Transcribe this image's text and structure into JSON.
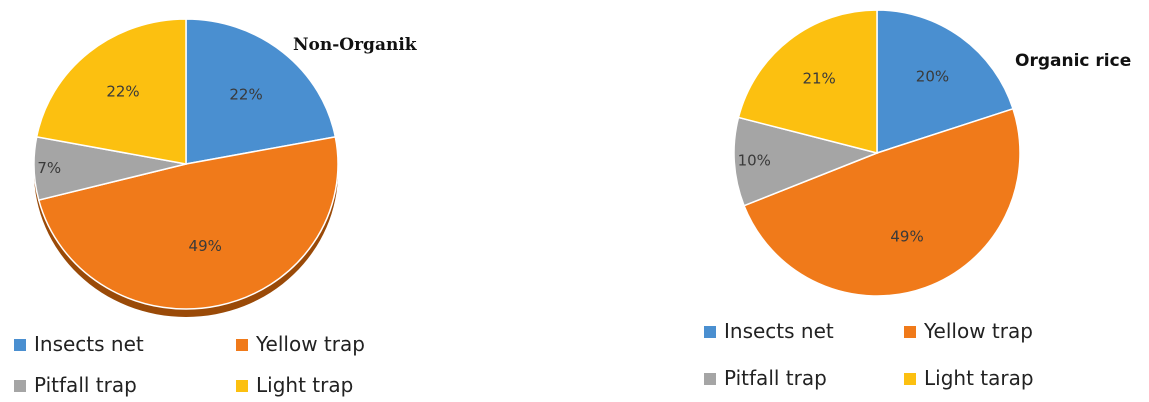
{
  "chart_data": [
    {
      "type": "pie",
      "title": "Non-Organik",
      "categories": [
        "Insects net",
        "Yellow trap",
        "Pitfall trap",
        "Light trap"
      ],
      "values": [
        22,
        49,
        7,
        22
      ],
      "labels": [
        "22%",
        "49%",
        "7%",
        "22%"
      ],
      "colors": [
        "#4a8fd0",
        "#f07a1a",
        "#a5a5a5",
        "#fcc010"
      ],
      "legend": {
        "position": "bottom",
        "items": [
          "Insects net",
          "Yellow trap",
          "Pitfall trap",
          "Light trap"
        ]
      }
    },
    {
      "type": "pie",
      "title": "Organic rice",
      "categories": [
        "Insects net",
        "Yellow trap",
        "Pitfall trap",
        "Light tarap"
      ],
      "values": [
        20,
        49,
        10,
        21
      ],
      "labels": [
        "20%",
        "49%",
        "10%",
        "21%"
      ],
      "colors": [
        "#4a8fd0",
        "#f07a1a",
        "#a5a5a5",
        "#fcc010"
      ],
      "legend": {
        "position": "bottom",
        "items": [
          "Insects net",
          "Yellow trap",
          "Pitfall trap",
          "Light tarap"
        ]
      }
    }
  ]
}
